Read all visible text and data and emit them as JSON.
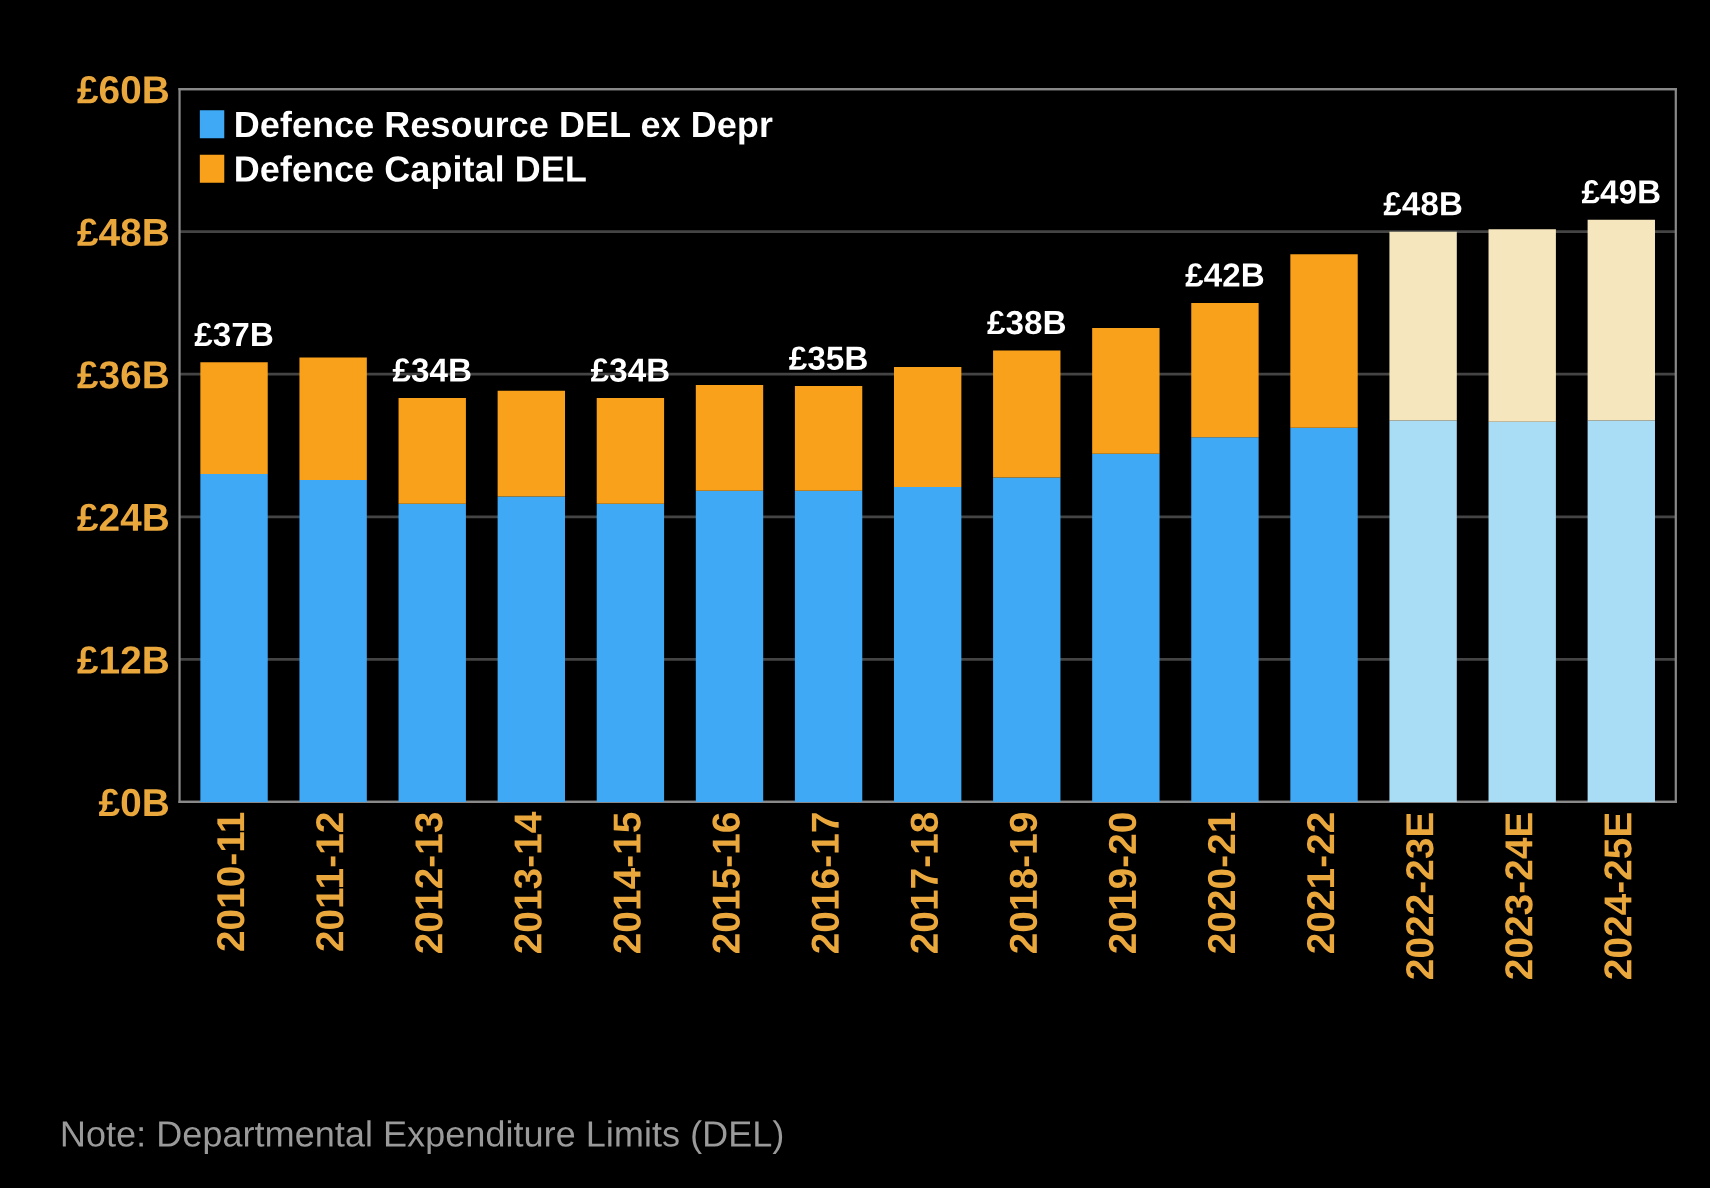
{
  "chart_data": {
    "type": "bar",
    "stacked": true,
    "categories": [
      "2010-11",
      "2011-12",
      "2012-13",
      "2013-14",
      "2014-15",
      "2015-16",
      "2016-17",
      "2017-18",
      "2018-19",
      "2019-20",
      "2020-21",
      "2021-22",
      "2022-23E",
      "2023-24E",
      "2024-25E"
    ],
    "series": [
      {
        "name": "Defence Resource DEL ex Depr",
        "color": "#3fa9f5",
        "colors": [
          "#3fa9f5",
          "#3fa9f5",
          "#3fa9f5",
          "#3fa9f5",
          "#3fa9f5",
          "#3fa9f5",
          "#3fa9f5",
          "#3fa9f5",
          "#3fa9f5",
          "#3fa9f5",
          "#3fa9f5",
          "#3fa9f5",
          "#a9dcf5",
          "#a9dcf5",
          "#a9dcf5"
        ],
        "values": [
          27.6,
          27.1,
          25.1,
          25.7,
          25.1,
          26.2,
          26.2,
          26.5,
          27.3,
          29.3,
          30.7,
          31.5,
          32.1,
          32.0,
          32.1
        ]
      },
      {
        "name": "Defence Capital DEL",
        "color": "#f9a11b",
        "colors": [
          "#f9a11b",
          "#f9a11b",
          "#f9a11b",
          "#f9a11b",
          "#f9a11b",
          "#f9a11b",
          "#f9a11b",
          "#f9a11b",
          "#f9a11b",
          "#f9a11b",
          "#f9a11b",
          "#f9a11b",
          "#f6e6bd",
          "#f6e6bd",
          "#f6e6bd"
        ],
        "values": [
          9.4,
          10.3,
          8.9,
          8.9,
          8.9,
          8.9,
          8.8,
          10.1,
          10.7,
          10.6,
          11.3,
          14.6,
          15.9,
          16.2,
          16.9
        ]
      }
    ],
    "totals": [
      "£37B",
      null,
      "£34B",
      null,
      "£34B",
      null,
      "£35B",
      null,
      "£38B",
      null,
      "£42B",
      null,
      "£48B",
      null,
      "£49B"
    ],
    "ylim": [
      0,
      60
    ],
    "yticks": [
      {
        "value": 0,
        "label": "£0B"
      },
      {
        "value": 12,
        "label": "£12B"
      },
      {
        "value": 24,
        "label": "£24B"
      },
      {
        "value": 36,
        "label": "£36B"
      },
      {
        "value": 48,
        "label": "£48B"
      },
      {
        "value": 60,
        "label": "£60B"
      }
    ],
    "grid": "y",
    "legend": "top left",
    "annotations": [
      "Note: Departmental Expenditure Limits (DEL)"
    ]
  }
}
